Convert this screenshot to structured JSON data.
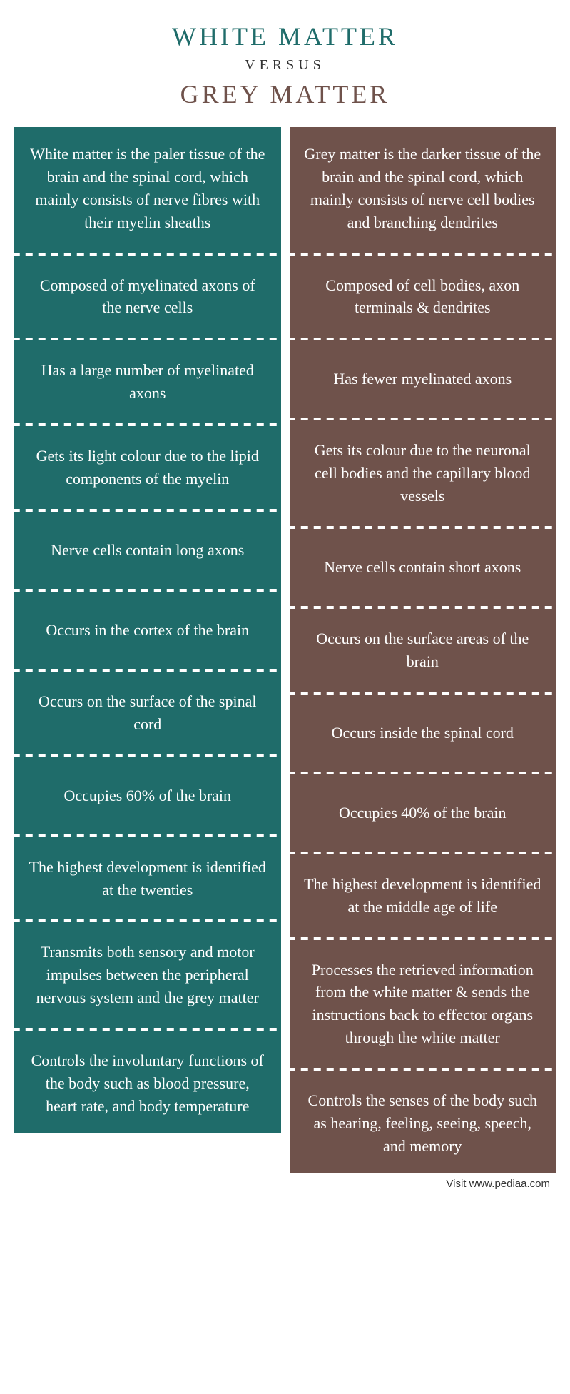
{
  "colors": {
    "left_title": "#1f6c6a",
    "right_title": "#6f524b",
    "left_bg": "#1f6c6a",
    "right_bg": "#6f524b",
    "versus": "#333333"
  },
  "header": {
    "left_title": "WHITE MATTER",
    "versus": "VERSUS",
    "right_title": "GREY MATTER"
  },
  "rows": [
    {
      "left": "White matter is the paler tissue of the brain and the spinal cord, which mainly consists of nerve fibres with their myelin sheaths",
      "right": "Grey matter is the darker tissue of the brain and the spinal cord, which mainly consists of nerve cell bodies and branching dendrites"
    },
    {
      "left": "Composed of myelinated axons of the nerve cells",
      "right": "Composed of cell bodies, axon terminals & dendrites"
    },
    {
      "left": "Has a large number of myelinated axons",
      "right": "Has fewer myelinated axons"
    },
    {
      "left": "Gets its light colour due to the lipid components of the myelin",
      "right": "Gets its colour due to the neuronal cell bodies and the capillary blood vessels"
    },
    {
      "left": "Nerve cells contain long axons",
      "right": "Nerve cells contain short axons"
    },
    {
      "left": "Occurs in the cortex of the brain",
      "right": "Occurs on the surface areas of the brain"
    },
    {
      "left": "Occurs on the surface of the spinal cord",
      "right": "Occurs inside the spinal cord"
    },
    {
      "left": "Occupies 60% of the brain",
      "right": "Occupies 40% of the brain"
    },
    {
      "left": "The highest development is identified at the twenties",
      "right": "The highest development is identified at the middle age of life"
    },
    {
      "left": "Transmits both sensory and motor impulses between the peripheral nervous system and the grey matter",
      "right": "Processes the retrieved information from the white matter &  sends the instructions back to effector organs through the white matter"
    },
    {
      "left": "Controls the involuntary functions of the body such as blood pressure, heart rate, and body temperature",
      "right": "Controls the senses of the body such as hearing, feeling, seeing, speech, and memory"
    }
  ],
  "footer": "Visit www.pediaa.com"
}
